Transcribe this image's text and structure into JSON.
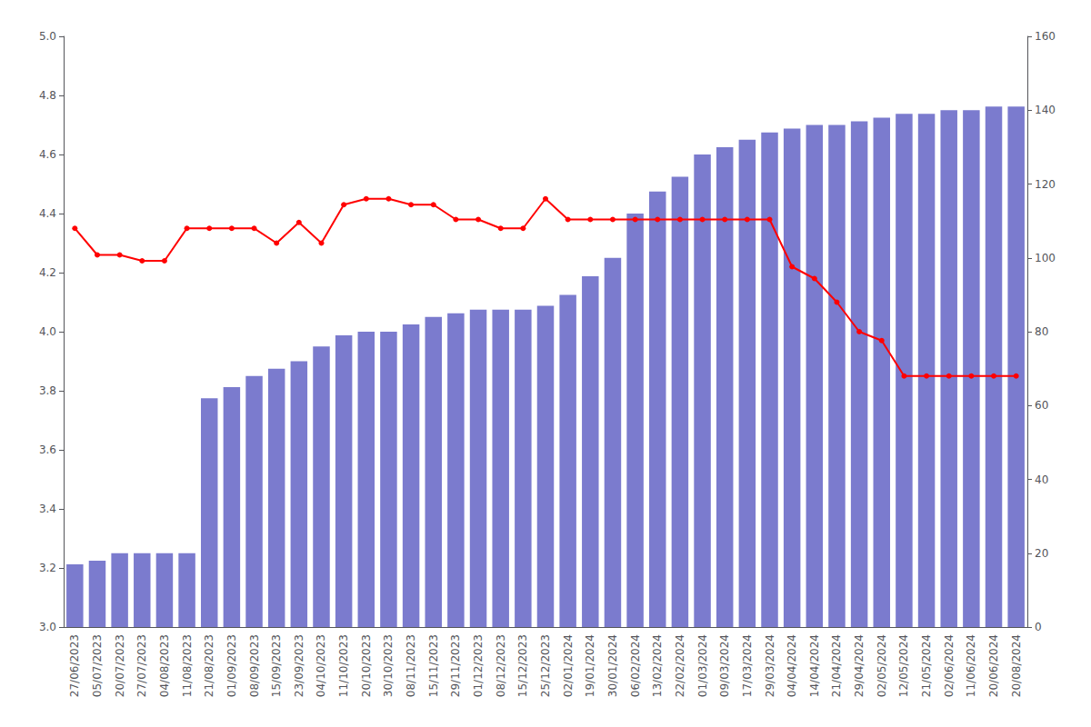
{
  "chart_data": {
    "type": "bar",
    "categories": [
      "27/06/2023",
      "05/07/2023",
      "20/07/2023",
      "27/07/2023",
      "04/08/2023",
      "11/08/2023",
      "21/08/2023",
      "01/09/2023",
      "08/09/2023",
      "15/09/2023",
      "23/09/2023",
      "04/10/2023",
      "11/10/2023",
      "20/10/2023",
      "30/10/2023",
      "08/11/2023",
      "15/11/2023",
      "29/11/2023",
      "01/12/2023",
      "08/12/2023",
      "15/12/2023",
      "25/12/2023",
      "02/01/2024",
      "19/01/2024",
      "30/01/2024",
      "06/02/2024",
      "13/02/2024",
      "22/02/2024",
      "01/03/2024",
      "09/03/2024",
      "17/03/2024",
      "29/03/2024",
      "04/04/2024",
      "14/04/2024",
      "21/04/2024",
      "29/04/2024",
      "02/05/2024",
      "12/05/2024",
      "21/05/2024",
      "02/06/2024",
      "11/06/2024",
      "20/06/2024",
      "20/08/2024"
    ],
    "series": [
      {
        "type": "bar",
        "axis": "y2",
        "color": "#7b7bce",
        "values": [
          17,
          18,
          20,
          20,
          20,
          20,
          62,
          65,
          68,
          70,
          72,
          76,
          79,
          80,
          80,
          82,
          84,
          85,
          86,
          86,
          86,
          87,
          90,
          95,
          100,
          112,
          118,
          122,
          128,
          130,
          132,
          134,
          135,
          136,
          136,
          137,
          138,
          139,
          139,
          140,
          140,
          141,
          141
        ]
      },
      {
        "type": "line",
        "color": "#ff0000",
        "marker": "circle",
        "values": [
          4.35,
          4.26,
          4.26,
          4.24,
          4.24,
          4.35,
          4.35,
          4.35,
          4.35,
          4.3,
          4.37,
          4.3,
          4.43,
          4.45,
          4.45,
          4.43,
          4.43,
          4.38,
          4.38,
          4.35,
          4.35,
          4.45,
          4.38,
          4.38,
          4.38,
          4.38,
          4.38,
          4.38,
          4.38,
          4.38,
          4.38,
          4.38,
          4.22,
          4.18,
          4.1,
          4.0,
          3.97,
          3.85,
          3.85,
          3.85,
          3.85,
          3.85,
          3.85
        ]
      }
    ],
    "ylim": [
      3.0,
      5.0
    ],
    "yticks": [
      {
        "value": 3.0,
        "label": "3.0"
      },
      3.2,
      3.4,
      3.6,
      3.8,
      {
        "value": 4.0,
        "label": "4.0"
      },
      4.2,
      4.4,
      4.6,
      4.8,
      {
        "value": 5.0,
        "label": "5.0"
      }
    ],
    "y2lim": [
      0,
      160
    ],
    "y2ticks": [
      0,
      20,
      40,
      60,
      80,
      100,
      120,
      140,
      160
    ],
    "grid": false
  }
}
